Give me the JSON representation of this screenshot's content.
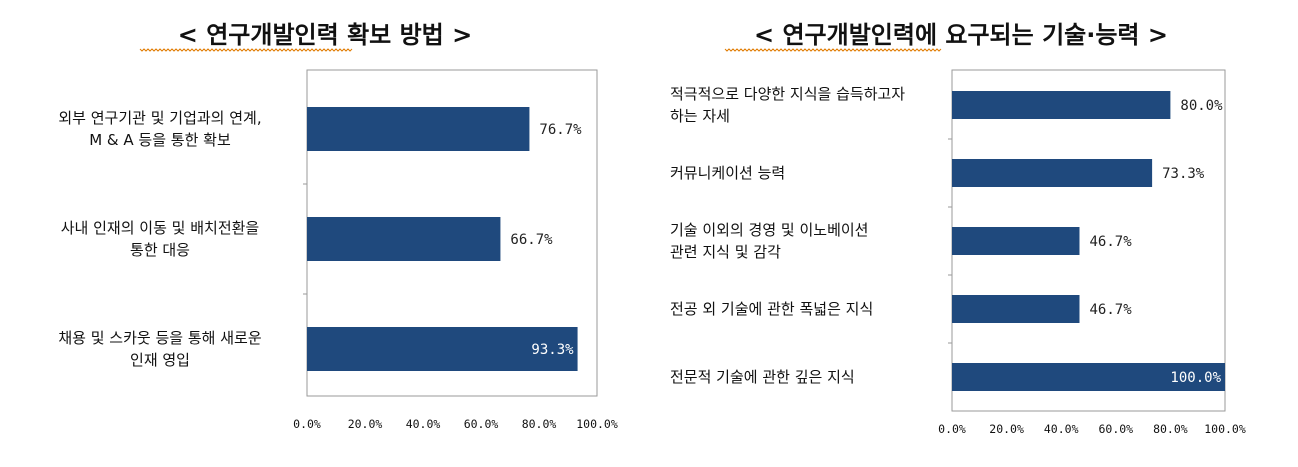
{
  "colors": {
    "bar": "#1f497d",
    "title_underline": "#e07b00"
  },
  "chart_data": [
    {
      "type": "bar",
      "orientation": "horizontal",
      "title": "< 연구개발인력 확보 방법 >",
      "categories": [
        [
          "외부 연구기관 및 기업과의 연계,",
          "M & A 등을 통한 확보"
        ],
        [
          "사내 인재의 이동 및 배치전환을",
          "통한 대응"
        ],
        [
          "채용 및 스카웃 등을 통해 새로운",
          "인재 영입"
        ]
      ],
      "values": [
        76.7,
        66.7,
        93.3
      ],
      "value_labels": [
        "76.7%",
        "66.7%",
        "93.3%"
      ],
      "xlim": [
        0,
        100
      ],
      "xticks": [
        "0.0%",
        "20.0%",
        "40.0%",
        "60.0%",
        "80.0%",
        "100.0%"
      ],
      "grid": false
    },
    {
      "type": "bar",
      "orientation": "horizontal",
      "title": "< 연구개발인력에 요구되는 기술·능력 >",
      "categories": [
        [
          "적극적으로 다양한 지식을 습득하고자",
          "하는 자세"
        ],
        [
          "커뮤니케이션 능력"
        ],
        [
          "기술 이외의 경영 및 이노베이션",
          "관련 지식 및 감각"
        ],
        [
          "전공 외 기술에 관한 폭넓은 지식"
        ],
        [
          "전문적 기술에 관한 깊은 지식"
        ]
      ],
      "values": [
        80.0,
        73.3,
        46.7,
        46.7,
        100.0
      ],
      "value_labels": [
        "80.0%",
        "73.3%",
        "46.7%",
        "46.7%",
        "100.0%"
      ],
      "xlim": [
        0,
        100
      ],
      "xticks": [
        "0.0%",
        "20.0%",
        "40.0%",
        "60.0%",
        "80.0%",
        "100.0%"
      ],
      "grid": false
    }
  ]
}
